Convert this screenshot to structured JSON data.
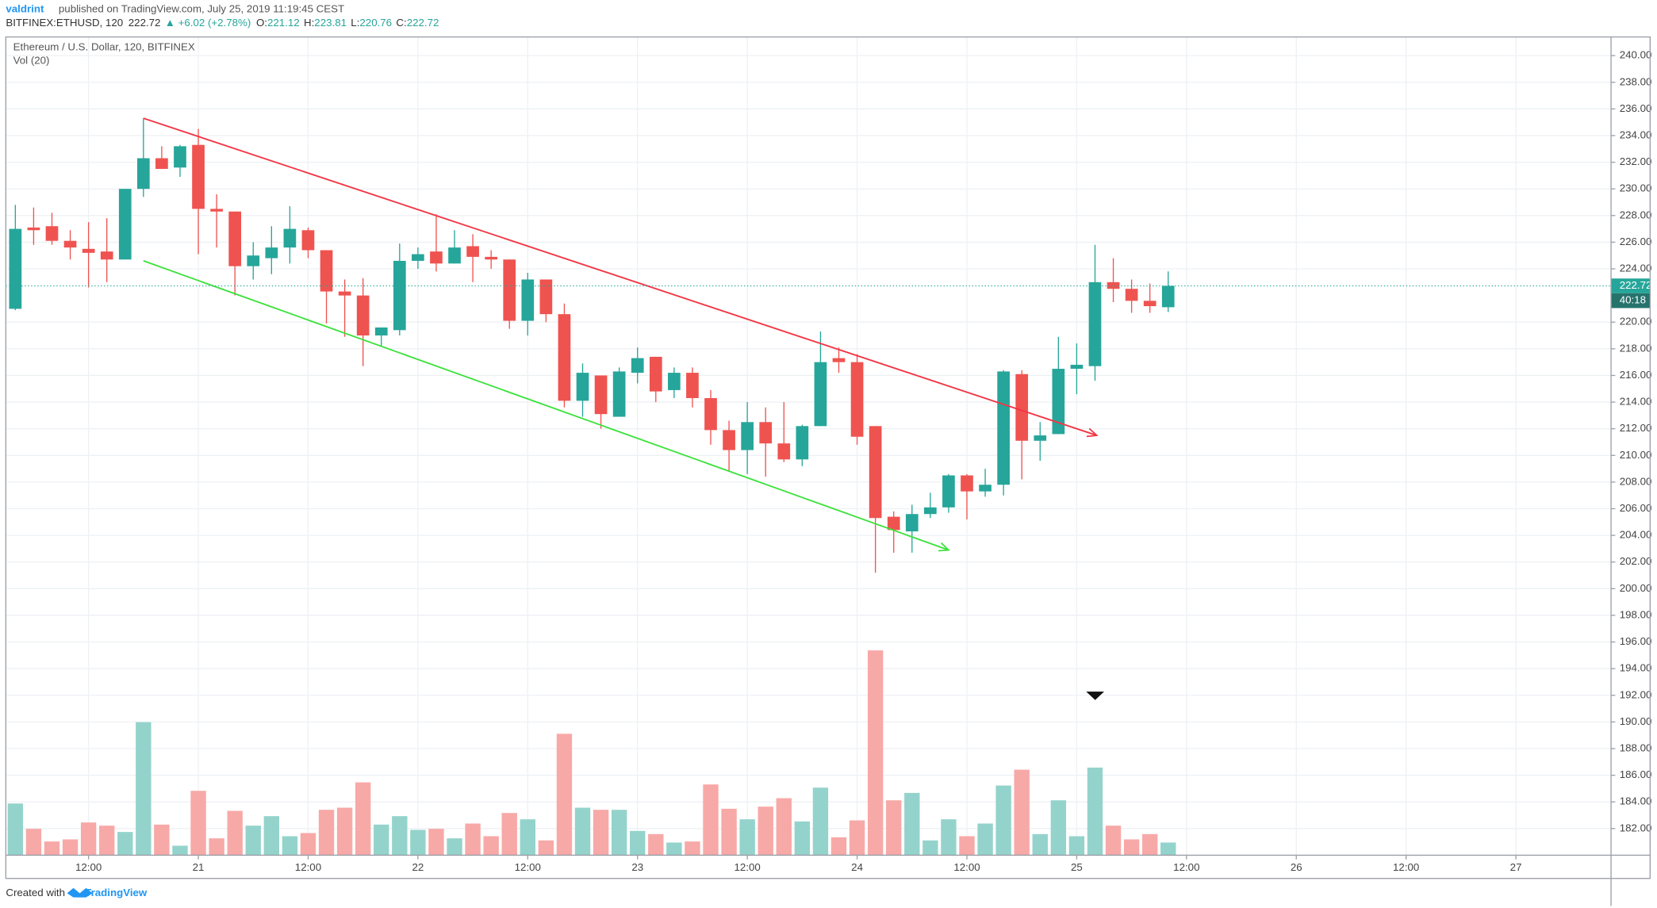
{
  "header": {
    "author": "valdrint",
    "published": "published on TradingView.com, July 25, 2019 11:19:45 CEST",
    "symbol": "BITFINEX:ETHUSD, 120",
    "price": "222.72",
    "change": "▲ +6.02 (+2.78%)",
    "ohlc": [
      {
        "label": "O:",
        "value": "221.12"
      },
      {
        "label": "H:",
        "value": "223.81"
      },
      {
        "label": "L:",
        "value": "220.76"
      },
      {
        "label": "C:",
        "value": "222.72"
      }
    ]
  },
  "chart_data": {
    "type": "candlestick",
    "title": "Ethereum / U.S. Dollar, 120, BITFINEX",
    "volume_title": "Vol (20)",
    "countdown": "40:18",
    "up_color": "#26a69a",
    "down_color": "#ef5350",
    "volume_up_color": "#94d3cb",
    "volume_down_color": "#f7a9a7",
    "grid": true,
    "categories": [
      null,
      null,
      null,
      null,
      null,
      null,
      null,
      null,
      null,
      null,
      null,
      null,
      null,
      null,
      null,
      null,
      null,
      null,
      null,
      null,
      null,
      null,
      null,
      null,
      null,
      null,
      null,
      null,
      null,
      null,
      null,
      null,
      null,
      null,
      null,
      null,
      null,
      null,
      null,
      null,
      null,
      null,
      null,
      null,
      null,
      null,
      null,
      null,
      null,
      null,
      null,
      null,
      null,
      null,
      null,
      null,
      null,
      null,
      null,
      null,
      null,
      null,
      null,
      null
    ],
    "open": [
      221.0,
      227.1,
      227.2,
      226.1,
      225.5,
      225.3,
      224.7,
      230.0,
      232.3,
      231.6,
      233.3,
      228.5,
      228.3,
      224.2,
      224.8,
      225.6,
      226.9,
      225.4,
      222.3,
      222.0,
      219.0,
      219.4,
      224.6,
      225.3,
      224.4,
      225.7,
      224.9,
      224.7,
      220.1,
      223.2,
      220.6,
      214.1,
      216.0,
      212.9,
      216.2,
      217.4,
      214.9,
      216.2,
      214.3,
      211.9,
      210.4,
      212.5,
      210.9,
      209.7,
      212.2,
      217.3,
      217.0,
      212.2,
      205.4,
      204.3,
      205.6,
      206.1,
      208.5,
      207.3,
      207.8,
      216.1,
      211.1,
      211.6,
      216.5,
      216.7,
      223.0,
      222.5,
      221.6,
      221.12
    ],
    "high": [
      228.8,
      228.6,
      228.2,
      226.9,
      227.5,
      227.8,
      230.0,
      235.3,
      233.2,
      233.3,
      234.5,
      229.6,
      228.3,
      226.0,
      227.2,
      228.7,
      227.1,
      225.4,
      223.2,
      223.3,
      219.6,
      225.9,
      225.6,
      228.1,
      226.9,
      226.6,
      225.4,
      224.7,
      223.7,
      223.2,
      221.4,
      216.9,
      216.0,
      216.6,
      218.1,
      217.4,
      216.6,
      216.6,
      214.9,
      212.6,
      214.0,
      213.6,
      214.0,
      212.3,
      219.3,
      218.1,
      217.6,
      212.2,
      205.8,
      206.3,
      207.2,
      208.6,
      208.6,
      209.0,
      216.4,
      216.4,
      212.5,
      218.9,
      218.4,
      225.8,
      224.8,
      223.2,
      222.9,
      223.81
    ],
    "low": [
      220.9,
      225.8,
      225.8,
      224.7,
      222.6,
      223.0,
      224.7,
      229.4,
      231.5,
      230.9,
      225.1,
      225.6,
      222.0,
      223.2,
      223.6,
      224.4,
      224.8,
      219.9,
      218.9,
      216.7,
      218.2,
      219.0,
      224.0,
      223.8,
      224.4,
      223.0,
      224.0,
      219.5,
      219.0,
      220.0,
      213.6,
      212.9,
      212.0,
      212.9,
      215.4,
      214.0,
      214.3,
      213.6,
      210.8,
      208.8,
      208.6,
      208.4,
      209.5,
      209.2,
      212.2,
      216.2,
      210.8,
      201.2,
      202.7,
      202.7,
      205.3,
      205.7,
      205.2,
      206.9,
      207.0,
      208.2,
      209.6,
      211.6,
      214.6,
      215.6,
      221.5,
      220.7,
      220.7,
      220.76
    ],
    "close": [
      227.0,
      226.9,
      226.1,
      225.6,
      225.2,
      224.7,
      230.0,
      232.3,
      231.5,
      233.2,
      228.5,
      228.3,
      224.2,
      225.0,
      225.6,
      227.0,
      225.4,
      222.3,
      222.0,
      219.0,
      219.6,
      224.6,
      225.1,
      224.4,
      225.6,
      224.9,
      224.7,
      220.1,
      223.2,
      220.6,
      214.1,
      216.2,
      213.1,
      216.3,
      217.3,
      214.8,
      216.2,
      214.3,
      211.9,
      210.4,
      212.5,
      210.9,
      209.7,
      212.2,
      217.0,
      217.0,
      211.4,
      205.3,
      204.4,
      205.6,
      206.1,
      208.5,
      207.3,
      207.8,
      216.3,
      211.1,
      211.5,
      216.5,
      216.8,
      223.0,
      222.5,
      221.6,
      221.2,
      222.72
    ],
    "volume": [
      49,
      25,
      13,
      15,
      31,
      28,
      22,
      126,
      29,
      9,
      61,
      16,
      42,
      28,
      37,
      18,
      21,
      43,
      45,
      69,
      29,
      37,
      24,
      25,
      16,
      30,
      18,
      40,
      34,
      14,
      115,
      45,
      43,
      43,
      23,
      20,
      12,
      13,
      67,
      44,
      34,
      46,
      54,
      32,
      64,
      17,
      33,
      194,
      52,
      59,
      14,
      34,
      18,
      30,
      66,
      81,
      20,
      52,
      18,
      83,
      28,
      15,
      20,
      12
    ],
    "xlim": [
      -0.52,
      87.2
    ],
    "xticks": [
      {
        "value": 4,
        "label": "12:00"
      },
      {
        "value": 10,
        "label": "21"
      },
      {
        "value": 16,
        "label": "12:00"
      },
      {
        "value": 22,
        "label": "22"
      },
      {
        "value": 28,
        "label": "12:00"
      },
      {
        "value": 34,
        "label": "23"
      },
      {
        "value": 40,
        "label": "12:00"
      },
      {
        "value": 46,
        "label": "24"
      },
      {
        "value": 52,
        "label": "12:00"
      },
      {
        "value": 58,
        "label": "25"
      },
      {
        "value": 64,
        "label": "12:00"
      },
      {
        "value": 70,
        "label": "26"
      },
      {
        "value": 76,
        "label": "12:00"
      },
      {
        "value": 82,
        "label": "27"
      }
    ],
    "ylim": [
      180.0,
      241.4
    ],
    "yticks": [
      {
        "value": 182,
        "label": "182.00"
      },
      {
        "value": 184,
        "label": "184.00"
      },
      {
        "value": 186,
        "label": "186.00"
      },
      {
        "value": 188,
        "label": "188.00"
      },
      {
        "value": 190,
        "label": "190.00"
      },
      {
        "value": 192,
        "label": "192.00"
      },
      {
        "value": 194,
        "label": "194.00"
      },
      {
        "value": 196,
        "label": "196.00"
      },
      {
        "value": 198,
        "label": "198.00"
      },
      {
        "value": 200,
        "label": "200.00"
      },
      {
        "value": 202,
        "label": "202.00"
      },
      {
        "value": 204,
        "label": "204.00"
      },
      {
        "value": 206,
        "label": "206.00"
      },
      {
        "value": 208,
        "label": "208.00"
      },
      {
        "value": 210,
        "label": "210.00"
      },
      {
        "value": 212,
        "label": "212.00"
      },
      {
        "value": 214,
        "label": "214.00"
      },
      {
        "value": 216,
        "label": "216.00"
      },
      {
        "value": 218,
        "label": "218.00"
      },
      {
        "value": 220,
        "label": "220.00"
      },
      {
        "value": 224,
        "label": "224.00"
      },
      {
        "value": 226,
        "label": "226.00"
      },
      {
        "value": 228,
        "label": "228.00"
      },
      {
        "value": 230,
        "label": "230.00"
      },
      {
        "value": 232,
        "label": "232.00"
      },
      {
        "value": 234,
        "label": "234.00"
      },
      {
        "value": 236,
        "label": "236.00"
      },
      {
        "value": 238,
        "label": "238.00"
      },
      {
        "value": 240,
        "label": "240.00"
      }
    ],
    "trend_lines": [
      {
        "color": "#f23645",
        "x": [
          7,
          59.1
        ],
        "y": [
          235.3,
          211.5
        ]
      },
      {
        "color": "#3be23b",
        "x": [
          7,
          51.0
        ],
        "y": [
          224.6,
          202.9
        ]
      }
    ]
  },
  "footer": {
    "created": "Created with",
    "brand": "TradingView"
  }
}
